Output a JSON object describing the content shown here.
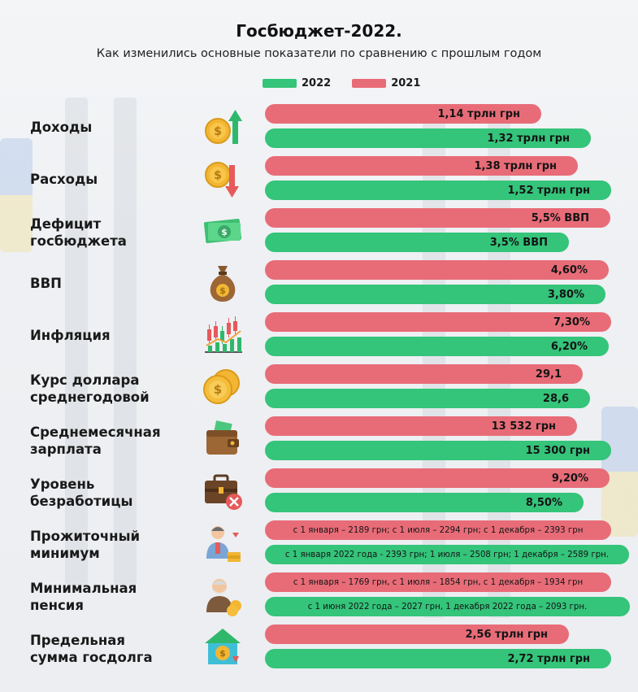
{
  "title": "Госбюджет-2022.",
  "subtitle": "Как изменились основные показатели по сравнению с прошлым годом",
  "colors": {
    "y2022": "#34c47a",
    "y2021": "#e86c78"
  },
  "legend": [
    {
      "label": "2022",
      "color": "#34c47a"
    },
    {
      "label": "2021",
      "color": "#e86c78"
    }
  ],
  "chart_data": {
    "type": "bar",
    "orientation": "horizontal",
    "series_order": [
      "2021",
      "2022"
    ],
    "rows": [
      {
        "category": "Доходы",
        "icon": "coin-arrow-up-icon",
        "values": {
          "2021": "1,14 трлн грн",
          "2022": "1,32 трлн грн"
        },
        "numeric": {
          "2021": 1.14,
          "2022": 1.32
        }
      },
      {
        "category": "Расходы",
        "icon": "coin-arrow-down-icon",
        "values": {
          "2021": "1,38 трлн грн",
          "2022": "1,52 трлн грн"
        },
        "numeric": {
          "2021": 1.38,
          "2022": 1.52
        }
      },
      {
        "category": "Дефицит госбюджета",
        "icon": "banknote-icon",
        "values": {
          "2021": "5,5% ВВП",
          "2022": "3,5% ВВП"
        },
        "numeric": {
          "2021": 5.5,
          "2022": 3.5
        }
      },
      {
        "category": "ВВП",
        "icon": "money-bag-icon",
        "values": {
          "2021": "4,60%",
          "2022": "3,80%"
        },
        "numeric": {
          "2021": 4.6,
          "2022": 3.8
        }
      },
      {
        "category": "Инфляция",
        "icon": "candlestick-chart-icon",
        "values": {
          "2021": "7,30%",
          "2022": "6,20%"
        },
        "numeric": {
          "2021": 7.3,
          "2022": 6.2
        }
      },
      {
        "category": "Курс доллара среднегодовой",
        "icon": "coins-icon",
        "values": {
          "2021": "29,1",
          "2022": "28,6"
        },
        "numeric": {
          "2021": 29.1,
          "2022": 28.6
        }
      },
      {
        "category": "Среднемесячная зарплата",
        "icon": "wallet-icon",
        "values": {
          "2021": "13 532 грн",
          "2022": "15 300 грн"
        },
        "numeric": {
          "2021": 13532,
          "2022": 15300
        }
      },
      {
        "category": "Уровень безработицы",
        "icon": "briefcase-cross-icon",
        "values": {
          "2021": "9,20%",
          "2022": "8,50%"
        },
        "numeric": {
          "2021": 9.2,
          "2022": 8.5
        }
      },
      {
        "category": "Прожиточный минимум",
        "icon": "person-coins-icon",
        "values": {
          "2021": "с 1 января – 2189 грн; с 1 июля – 2294 грн; с 1 декабря – 2393 грн",
          "2022": "с 1 января 2022 года - 2393 грн; 1 июля – 2508 грн; 1 декабря – 2589 грн."
        }
      },
      {
        "category": "Минимальная пенсия",
        "icon": "elderly-person-icon",
        "values": {
          "2021": "с 1 января – 1769 грн, с 1 июля – 1854 грн, с 1 декабря – 1934 грн",
          "2022": "с 1 июня 2022 года – 2027 грн, 1 декабря 2022 года – 2093 грн."
        }
      },
      {
        "category": "Предельная сумма госдолга",
        "icon": "house-coin-icon",
        "values": {
          "2021": "2,56 трлн грн",
          "2022": "2,72 трлн грн"
        },
        "numeric": {
          "2021": 2.56,
          "2022": 2.72
        }
      }
    ]
  }
}
